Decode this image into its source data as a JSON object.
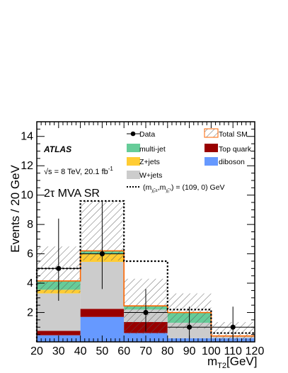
{
  "chart_data": {
    "type": "bar",
    "stacked": true,
    "x_edges": [
      20,
      40,
      60,
      80,
      100,
      120
    ],
    "x_centers": [
      30,
      50,
      70,
      90,
      110
    ],
    "xlim": [
      20,
      120
    ],
    "ylim": [
      0,
      15
    ],
    "xticks": [
      20,
      30,
      40,
      50,
      60,
      70,
      80,
      90,
      100,
      110,
      120
    ],
    "yticks": [
      2,
      4,
      6,
      8,
      10,
      12,
      14
    ],
    "xlabel_main": "m",
    "xlabel_sub": "T2",
    "xlabel_unit": "[GeV]",
    "ylabel": "Events / 20 GeV",
    "experiment": "ATLAS",
    "energy_pre": "√s = 8 TeV, 20.1 fb",
    "energy_sup": "-1",
    "region": "2τ MVA SR",
    "series": [
      {
        "name": "diboson",
        "color": "#6699ff",
        "values": [
          0.45,
          1.7,
          0.6,
          0.25,
          0.25
        ]
      },
      {
        "name": "Top quark",
        "color": "#990000",
        "values": [
          0.3,
          0.55,
          0.75,
          0.0,
          0.0
        ]
      },
      {
        "name": "W+jets",
        "color": "#cccccc",
        "values": [
          2.55,
          3.2,
          0.85,
          1.05,
          0.15
        ]
      },
      {
        "name": "Z+jets",
        "color": "#ffcc33",
        "values": [
          0.25,
          0.55,
          0.0,
          0.0,
          0.0
        ]
      },
      {
        "name": "multi-jet",
        "color": "#66cc99",
        "values": [
          0.6,
          0.2,
          0.25,
          0.7,
          0.0
        ]
      }
    ],
    "total_sm": {
      "name": "Total SM",
      "line_color": "#ff6600",
      "values": [
        4.15,
        6.2,
        2.45,
        2.0,
        0.4
      ],
      "unc_low": [
        3.35,
        5.55,
        0.55,
        0.9,
        0.1
      ],
      "unc_high": [
        6.5,
        9.6,
        4.3,
        3.3,
        1.35
      ]
    },
    "signal": {
      "name_prefix": "(m",
      "name_suffix": ") = (109, 0) GeV",
      "values": [
        5.0,
        9.6,
        5.5,
        2.2,
        0.6
      ]
    },
    "data": {
      "name": "Data",
      "values": [
        5,
        6,
        2,
        1,
        1
      ],
      "err_low": [
        2.2,
        2.4,
        1.3,
        0.8,
        0.8
      ],
      "err_high": [
        3.4,
        3.6,
        1.6,
        1.4,
        1.4
      ]
    },
    "legend_placement": "top"
  }
}
